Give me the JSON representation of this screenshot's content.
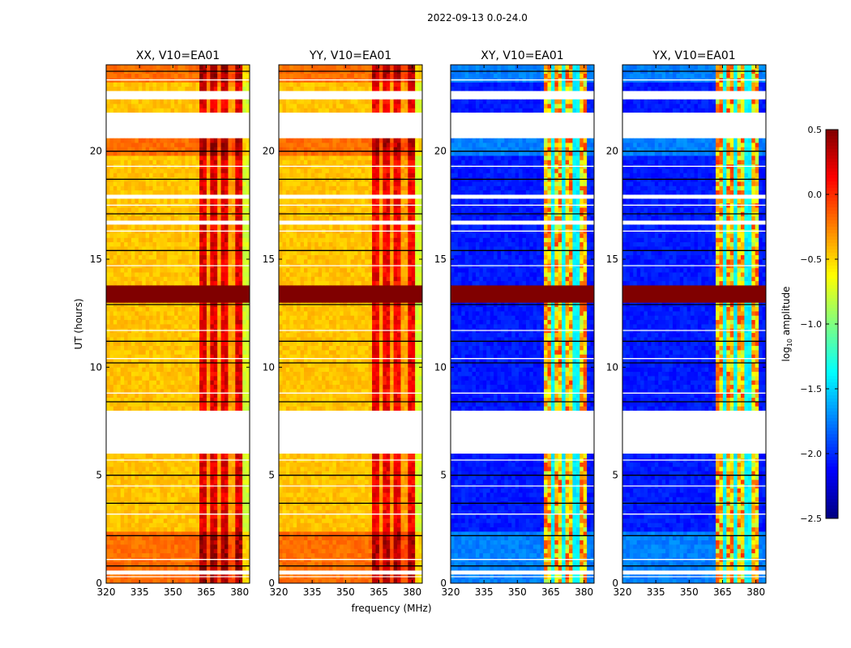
{
  "chart_data": {
    "type": "heatmap",
    "suptitle": "2022-09-13 0.0-24.0",
    "xlabel": "frequency (MHz)",
    "ylabel": "UT (hours)",
    "xlim": [
      320,
      384.5
    ],
    "ylim": [
      0,
      24
    ],
    "xticks": [
      "320",
      "335",
      "350",
      "365",
      "380"
    ],
    "xtick_values": [
      320,
      335,
      350,
      365,
      380
    ],
    "yticks": [
      "0",
      "5",
      "10",
      "15",
      "20"
    ],
    "ytick_values": [
      0,
      5,
      10,
      15,
      20
    ],
    "colorbar": {
      "label": "log10 amplitude",
      "label_main": "log",
      "label_sub": "10",
      "label_rest": " amplitude",
      "range": [
        -2.5,
        0.5
      ],
      "ticks": [
        "0.5",
        "0.0",
        "−0.5",
        "−1.0",
        "−1.5",
        "−2.0",
        "−2.5"
      ],
      "tick_values": [
        0.5,
        0.0,
        -0.5,
        -1.0,
        -1.5,
        -2.0,
        -2.5
      ],
      "colormap": "jet"
    },
    "panels": [
      {
        "title": "XX, V10=EA01",
        "kind": "auto",
        "base": -0.45,
        "rfi": 0.2
      },
      {
        "title": "YY, V10=EA01",
        "kind": "auto",
        "base": -0.45,
        "rfi": 0.15
      },
      {
        "title": "XY, V10=EA01",
        "kind": "cross",
        "base": -2.05,
        "rfi": -0.6
      },
      {
        "title": "YX, V10=EA01",
        "kind": "cross",
        "base": -2.05,
        "rfi": -0.6
      }
    ],
    "rfi_band_mhz": [
      362,
      380.5
    ],
    "rfi_column_gaps_mhz": [
      366.5,
      371.5,
      376.5
    ],
    "flagged_hours": [
      [
        22.5,
        22.9
      ],
      [
        20.7,
        21.9
      ],
      [
        17.9,
        18.1
      ],
      [
        16.7,
        16.85
      ],
      [
        6.1,
        8.0
      ],
      [
        0.45,
        0.6
      ]
    ],
    "flag_lines_hours": [
      23.7,
      23.3,
      20.0,
      19.3,
      18.7,
      17.5,
      17.1,
      16.3,
      15.4,
      14.7,
      12.9,
      11.7,
      11.2,
      10.4,
      10.2,
      8.8,
      8.4,
      5.7,
      5.0,
      4.5,
      3.7,
      3.2,
      2.2,
      1.1,
      0.8,
      0.3
    ],
    "bright_hours": [
      [
        13.0,
        13.8
      ]
    ],
    "elevated_hours": [
      [
        0,
        2.5
      ],
      [
        19.8,
        20.7
      ],
      [
        23.2,
        24
      ]
    ]
  }
}
